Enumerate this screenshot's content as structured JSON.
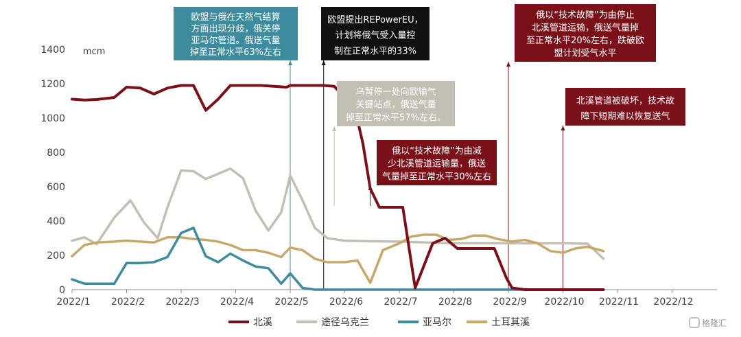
{
  "chart_data": {
    "type": "line",
    "unit": "mcm",
    "ylim": [
      0,
      1400
    ],
    "yticks": [
      0,
      200,
      400,
      600,
      800,
      1000,
      1200,
      1400
    ],
    "xticks": [
      "2022/1",
      "2022/2",
      "2022/3",
      "2022/4",
      "2022/5",
      "2022/6",
      "2022/7",
      "2022/8",
      "2022/9",
      "2022/10",
      "2022/11",
      "2022/12"
    ],
    "grid": false,
    "legend_position": "bottom",
    "series": [
      {
        "name": "北溪",
        "color": "#7a1118",
        "points": [
          [
            "2022/1/1",
            1110
          ],
          [
            "2022/1/8",
            1105
          ],
          [
            "2022/1/15",
            1108
          ],
          [
            "2022/1/25",
            1120
          ],
          [
            "2022/2/1",
            1180
          ],
          [
            "2022/2/8",
            1175
          ],
          [
            "2022/2/15",
            1140
          ],
          [
            "2022/2/22",
            1175
          ],
          [
            "2022/3/1",
            1190
          ],
          [
            "2022/3/8",
            1190
          ],
          [
            "2022/3/15",
            1045
          ],
          [
            "2022/3/22",
            1110
          ],
          [
            "2022/3/29",
            1190
          ],
          [
            "2022/4/8",
            1190
          ],
          [
            "2022/4/15",
            1190
          ],
          [
            "2022/4/22",
            1185
          ],
          [
            "2022/4/29",
            1180
          ],
          [
            "2022/5/1",
            1190
          ],
          [
            "2022/5/10",
            1190
          ],
          [
            "2022/5/20",
            1190
          ],
          [
            "2022/5/26",
            1185
          ],
          [
            "2022/6/1",
            1120
          ],
          [
            "2022/6/6",
            1080
          ],
          [
            "2022/6/11",
            850
          ],
          [
            "2022/6/15",
            590
          ],
          [
            "2022/6/20",
            480
          ],
          [
            "2022/6/27",
            480
          ],
          [
            "2022/7/3",
            480
          ],
          [
            "2022/7/10",
            10
          ],
          [
            "2022/7/20",
            270
          ],
          [
            "2022/7/27",
            300
          ],
          [
            "2022/8/3",
            240
          ],
          [
            "2022/8/10",
            240
          ],
          [
            "2022/8/17",
            240
          ],
          [
            "2022/8/24",
            240
          ],
          [
            "2022/8/31",
            65
          ],
          [
            "2022/9/3",
            10
          ],
          [
            "2022/9/10",
            0
          ],
          [
            "2022/10/1",
            0
          ],
          [
            "2022/10/24",
            0
          ]
        ]
      },
      {
        "name": "途径乌克兰",
        "color": "#c2c0b4",
        "points": [
          [
            "2022/1/1",
            285
          ],
          [
            "2022/1/8",
            305
          ],
          [
            "2022/1/15",
            265
          ],
          [
            "2022/1/25",
            420
          ],
          [
            "2022/2/3",
            520
          ],
          [
            "2022/2/10",
            390
          ],
          [
            "2022/2/17",
            300
          ],
          [
            "2022/2/22",
            480
          ],
          [
            "2022/3/1",
            695
          ],
          [
            "2022/3/8",
            690
          ],
          [
            "2022/3/15",
            645
          ],
          [
            "2022/3/22",
            675
          ],
          [
            "2022/3/29",
            705
          ],
          [
            "2022/4/5",
            650
          ],
          [
            "2022/4/12",
            460
          ],
          [
            "2022/4/19",
            345
          ],
          [
            "2022/4/26",
            450
          ],
          [
            "2022/5/1",
            665
          ],
          [
            "2022/5/8",
            520
          ],
          [
            "2022/5/15",
            360
          ],
          [
            "2022/5/22",
            300
          ],
          [
            "2022/6/1",
            285
          ],
          [
            "2022/6/15",
            282
          ],
          [
            "2022/7/1",
            280
          ],
          [
            "2022/8/1",
            270
          ],
          [
            "2022/9/1",
            270
          ],
          [
            "2022/10/1",
            270
          ],
          [
            "2022/10/15",
            268
          ],
          [
            "2022/10/24",
            180
          ]
        ]
      },
      {
        "name": "亚马尔",
        "color": "#3d8b9c",
        "points": [
          [
            "2022/1/1",
            60
          ],
          [
            "2022/1/8",
            35
          ],
          [
            "2022/1/15",
            35
          ],
          [
            "2022/1/25",
            35
          ],
          [
            "2022/2/1",
            155
          ],
          [
            "2022/2/8",
            155
          ],
          [
            "2022/2/15",
            160
          ],
          [
            "2022/2/22",
            190
          ],
          [
            "2022/3/1",
            330
          ],
          [
            "2022/3/8",
            360
          ],
          [
            "2022/3/15",
            195
          ],
          [
            "2022/3/22",
            160
          ],
          [
            "2022/3/29",
            210
          ],
          [
            "2022/4/5",
            170
          ],
          [
            "2022/4/12",
            135
          ],
          [
            "2022/4/19",
            125
          ],
          [
            "2022/4/26",
            35
          ],
          [
            "2022/5/1",
            95
          ],
          [
            "2022/5/8",
            10
          ],
          [
            "2022/5/15",
            0
          ],
          [
            "2022/6/1",
            0
          ],
          [
            "2022/8/1",
            0
          ],
          [
            "2022/10/24",
            0
          ]
        ]
      },
      {
        "name": "土耳其溪",
        "color": "#c7a86a",
        "points": [
          [
            "2022/1/1",
            195
          ],
          [
            "2022/1/8",
            260
          ],
          [
            "2022/1/15",
            275
          ],
          [
            "2022/1/25",
            280
          ],
          [
            "2022/2/1",
            285
          ],
          [
            "2022/2/8",
            280
          ],
          [
            "2022/2/15",
            275
          ],
          [
            "2022/2/22",
            305
          ],
          [
            "2022/3/1",
            305
          ],
          [
            "2022/3/8",
            295
          ],
          [
            "2022/3/15",
            290
          ],
          [
            "2022/3/22",
            280
          ],
          [
            "2022/3/29",
            260
          ],
          [
            "2022/4/5",
            230
          ],
          [
            "2022/4/12",
            230
          ],
          [
            "2022/4/19",
            215
          ],
          [
            "2022/4/26",
            190
          ],
          [
            "2022/5/1",
            245
          ],
          [
            "2022/5/8",
            230
          ],
          [
            "2022/5/15",
            180
          ],
          [
            "2022/5/22",
            160
          ],
          [
            "2022/6/1",
            160
          ],
          [
            "2022/6/8",
            170
          ],
          [
            "2022/6/15",
            40
          ],
          [
            "2022/6/22",
            230
          ],
          [
            "2022/7/1",
            270
          ],
          [
            "2022/7/8",
            310
          ],
          [
            "2022/7/15",
            320
          ],
          [
            "2022/7/22",
            320
          ],
          [
            "2022/7/29",
            290
          ],
          [
            "2022/8/5",
            295
          ],
          [
            "2022/8/12",
            315
          ],
          [
            "2022/8/19",
            315
          ],
          [
            "2022/8/26",
            295
          ],
          [
            "2022/9/3",
            280
          ],
          [
            "2022/9/10",
            290
          ],
          [
            "2022/9/17",
            270
          ],
          [
            "2022/9/24",
            225
          ],
          [
            "2022/10/1",
            215
          ],
          [
            "2022/10/8",
            240
          ],
          [
            "2022/10/15",
            250
          ],
          [
            "2022/10/24",
            225
          ]
        ]
      }
    ],
    "annotations": [
      {
        "lines": [
          "欧盟与俄在天然气结算",
          "方面出现分歧，俄关停",
          "亚马尔管道。俄送气量",
          "掉至正常水平63%左右"
        ],
        "date": "2022/5/1",
        "color": "#3d8b9c",
        "text_color": "#ffffff"
      },
      {
        "lines": [
          "欧盟提出REPowerEU，",
          "计划将俄气受入量控",
          "制在正常水平的33%"
        ],
        "date": "2022/5/20",
        "color": "#111111",
        "text_color": "#ffffff"
      },
      {
        "lines": [
          "乌暂停一处向欧输气",
          "关键站点，俄送气量",
          "掉至正常水平57%左右。"
        ],
        "date": "2022/5/26",
        "color": "#c2c0b4",
        "text_color": "#ffffff"
      },
      {
        "lines": [
          "俄以“技术故障”为由减",
          "少北溪管道运输量，俄送",
          "气量掉至正常水平30%左右"
        ],
        "date": "2022/6/15",
        "color": "#7a1118",
        "text_color": "#ffffff"
      },
      {
        "lines": [
          "俄以“技术故障”为由停止",
          "北溪管道运输，俄送气量掉",
          "至正常水平20%左右，跌破欧",
          "盟计划受气水平"
        ],
        "date": "2022/9/1",
        "color": "#7a1118",
        "text_color": "#ffffff"
      },
      {
        "lines": [
          "北溪管道被破坏，技术故",
          "障下短期难以恢复送气"
        ],
        "date": "2022/10/1",
        "color": "#7a1118",
        "text_color": "#ffffff"
      }
    ]
  },
  "watermark": "格隆汇"
}
